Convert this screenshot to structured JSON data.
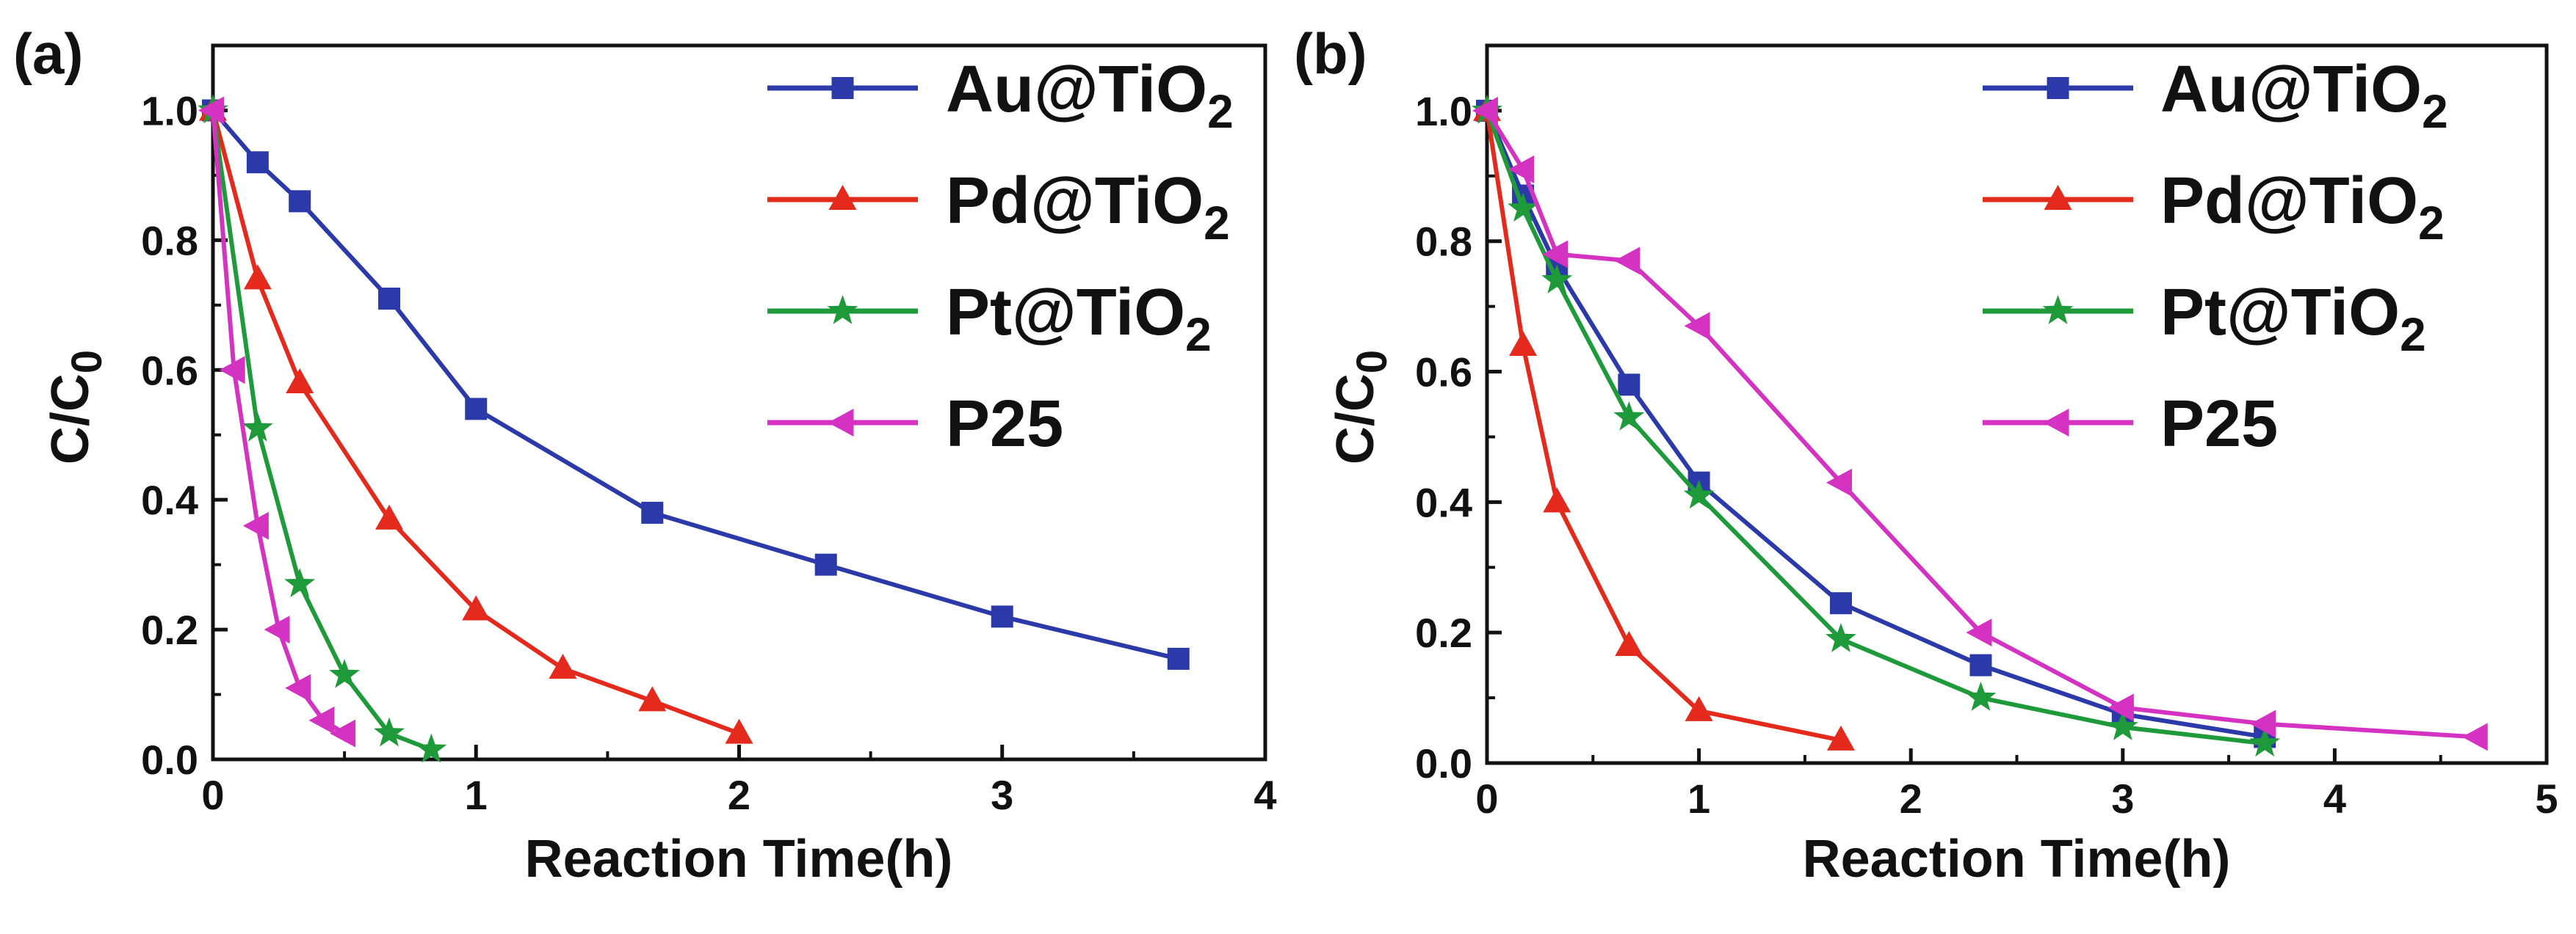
{
  "chart_data": [
    {
      "type": "line",
      "panel_label": "(a)",
      "xlabel": "Reaction Time(h)",
      "ylabel": {
        "main": "C/C",
        "sub": "0"
      },
      "xlim": [
        0,
        4
      ],
      "ylim": [
        0,
        1.1
      ],
      "xticks": [
        0,
        1,
        2,
        3,
        4
      ],
      "yticks": [
        0.0,
        0.2,
        0.4,
        0.6,
        0.8,
        1.0
      ],
      "xtick_labels": [
        "0",
        "1",
        "2",
        "3",
        "4"
      ],
      "ytick_labels": [
        "0.0",
        "0.2",
        "0.4",
        "0.6",
        "0.8",
        "1.0"
      ],
      "legend_position": "top-right",
      "series": [
        {
          "name": "Au@TiO",
          "name_sub": "2",
          "color": "#2b3aa8",
          "marker": "square",
          "x": [
            0,
            0.17,
            0.33,
            0.67,
            1.0,
            1.67,
            2.33,
            3.0,
            3.67
          ],
          "y": [
            1.0,
            0.92,
            0.86,
            0.71,
            0.54,
            0.38,
            0.3,
            0.22,
            0.155
          ]
        },
        {
          "name": "Pd@TiO",
          "name_sub": "2",
          "color": "#e32a1c",
          "marker": "triangle-up",
          "x": [
            0,
            0.17,
            0.33,
            0.67,
            1.0,
            1.33,
            1.67,
            2.0
          ],
          "y": [
            1.0,
            0.74,
            0.58,
            0.37,
            0.23,
            0.14,
            0.09,
            0.04
          ]
        },
        {
          "name": "Pt@TiO",
          "name_sub": "2",
          "color": "#1f9a3a",
          "marker": "star",
          "x": [
            0,
            0.17,
            0.33,
            0.5,
            0.67,
            0.83
          ],
          "y": [
            1.0,
            0.51,
            0.27,
            0.13,
            0.04,
            0.015
          ]
        },
        {
          "name": "P25",
          "name_sub": "",
          "color": "#d433c2",
          "marker": "triangle-left",
          "x": [
            0,
            0.08,
            0.17,
            0.25,
            0.33,
            0.42,
            0.5
          ],
          "y": [
            1.0,
            0.6,
            0.36,
            0.2,
            0.11,
            0.06,
            0.04
          ]
        }
      ]
    },
    {
      "type": "line",
      "panel_label": "(b)",
      "xlabel": "Reaction Time(h)",
      "ylabel": {
        "main": "C/C",
        "sub": "0"
      },
      "xlim": [
        0,
        5
      ],
      "ylim": [
        0,
        1.1
      ],
      "xticks": [
        0,
        1,
        2,
        3,
        4,
        5
      ],
      "yticks": [
        0.0,
        0.2,
        0.4,
        0.6,
        0.8,
        1.0
      ],
      "xtick_labels": [
        "0",
        "1",
        "2",
        "3",
        "4",
        "5"
      ],
      "ytick_labels": [
        "0.0",
        "0.2",
        "0.4",
        "0.6",
        "0.8",
        "1.0"
      ],
      "legend_position": "top-right",
      "series": [
        {
          "name": "Au@TiO",
          "name_sub": "2",
          "color": "#2b3aa8",
          "marker": "square",
          "x": [
            0,
            0.17,
            0.33,
            0.67,
            1.0,
            1.67,
            2.33,
            3.0,
            3.67
          ],
          "y": [
            1.0,
            0.87,
            0.76,
            0.58,
            0.43,
            0.245,
            0.15,
            0.075,
            0.04
          ]
        },
        {
          "name": "Pd@TiO",
          "name_sub": "2",
          "color": "#e32a1c",
          "marker": "triangle-up",
          "x": [
            0,
            0.17,
            0.33,
            0.67,
            1.0,
            1.67
          ],
          "y": [
            1.0,
            0.64,
            0.4,
            0.18,
            0.08,
            0.035
          ]
        },
        {
          "name": "Pt@TiO",
          "name_sub": "2",
          "color": "#1f9a3a",
          "marker": "star",
          "x": [
            0,
            0.17,
            0.33,
            0.67,
            1.0,
            1.67,
            2.33,
            3.0,
            3.67
          ],
          "y": [
            1.0,
            0.85,
            0.74,
            0.53,
            0.41,
            0.19,
            0.1,
            0.055,
            0.03
          ]
        },
        {
          "name": "P25",
          "name_sub": "",
          "color": "#d433c2",
          "marker": "triangle-left",
          "x": [
            0,
            0.17,
            0.33,
            0.67,
            1.0,
            1.67,
            2.33,
            3.0,
            3.67,
            4.67
          ],
          "y": [
            1.0,
            0.91,
            0.78,
            0.77,
            0.67,
            0.43,
            0.2,
            0.085,
            0.06,
            0.04
          ]
        }
      ]
    }
  ]
}
